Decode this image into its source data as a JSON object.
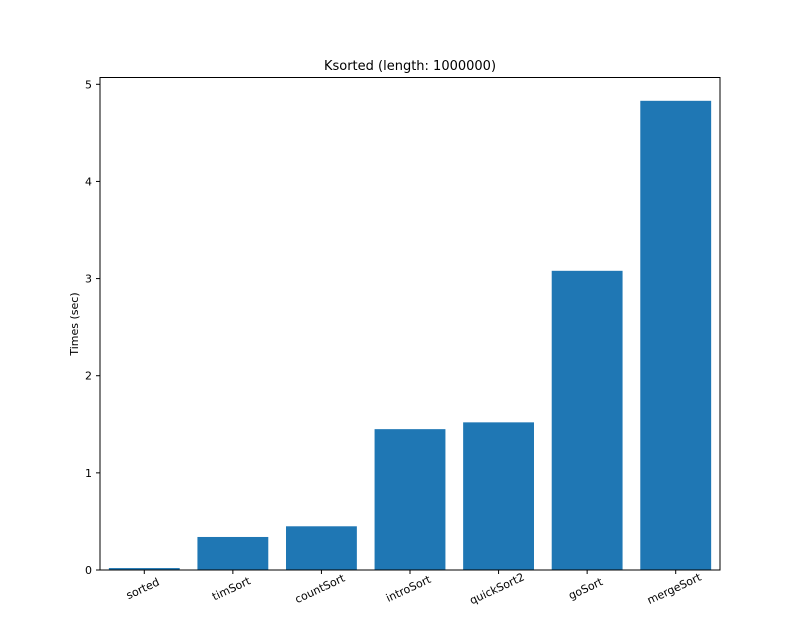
{
  "chart_data": {
    "type": "bar",
    "title": "Ksorted (length: 1000000)",
    "xlabel": "",
    "ylabel": "Times (sec)",
    "categories": [
      "sorted",
      "timSort",
      "countSort",
      "introSort",
      "quickSort2",
      "goSort",
      "mergeSort"
    ],
    "values": [
      0.02,
      0.34,
      0.45,
      1.45,
      1.52,
      3.08,
      4.83
    ],
    "ylim": [
      0,
      5.07
    ],
    "yticks": [
      "0",
      "1",
      "2",
      "3",
      "4",
      "5"
    ],
    "bar_color": "#1f77b4",
    "grid": false,
    "x_tick_rotation": "-25"
  }
}
